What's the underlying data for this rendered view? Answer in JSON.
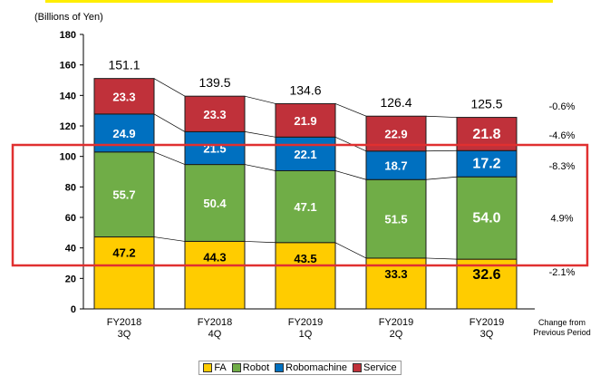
{
  "chart_data": {
    "type": "stacked-bar",
    "unit_label": "(Billions of Yen)",
    "ylim": [
      0,
      180
    ],
    "yticks": [
      0,
      20,
      40,
      60,
      80,
      100,
      120,
      140,
      160,
      180
    ],
    "categories": [
      [
        "FY2018",
        "3Q"
      ],
      [
        "FY2018",
        "4Q"
      ],
      [
        "FY2019",
        "1Q"
      ],
      [
        "FY2019",
        "2Q"
      ],
      [
        "FY2019",
        "3Q"
      ]
    ],
    "totals": [
      "151.1",
      "139.5",
      "134.6",
      "126.4",
      "125.5"
    ],
    "series": [
      {
        "name": "FA",
        "color": "#FFCC00",
        "label_color": "#000000",
        "values": [
          47.2,
          44.3,
          43.5,
          33.3,
          32.6
        ],
        "labels": [
          "47.2",
          "44.3",
          "43.5",
          "33.3",
          "32.6"
        ],
        "change": "-2.1%"
      },
      {
        "name": "Robot",
        "color": "#70AD47",
        "label_color": "#FFFFFF",
        "values": [
          55.7,
          50.4,
          47.1,
          51.5,
          54.0
        ],
        "labels": [
          "55.7",
          "50.4",
          "47.1",
          "51.5",
          "54.0"
        ],
        "change": "4.9%"
      },
      {
        "name": "Robomachine",
        "color": "#0070C0",
        "label_color": "#FFFFFF",
        "values": [
          24.9,
          21.5,
          22.1,
          18.7,
          17.2
        ],
        "labels": [
          "24.9",
          "21.5",
          "22.1",
          "18.7",
          "17.2"
        ],
        "change": "-8.3%"
      },
      {
        "name": "Service",
        "color": "#C0313A",
        "label_color": "#FFFFFF",
        "values": [
          23.3,
          23.3,
          21.9,
          22.9,
          21.8
        ],
        "labels": [
          "23.3",
          "23.3",
          "21.9",
          "22.9",
          "21.8"
        ],
        "change": "-4.6%"
      }
    ],
    "total_change": "-0.6%",
    "change_header": [
      "Change from",
      "Previous Period"
    ],
    "accent_colors": {
      "top_line": "#FFEE00",
      "highlight_box": "#E03030"
    }
  }
}
